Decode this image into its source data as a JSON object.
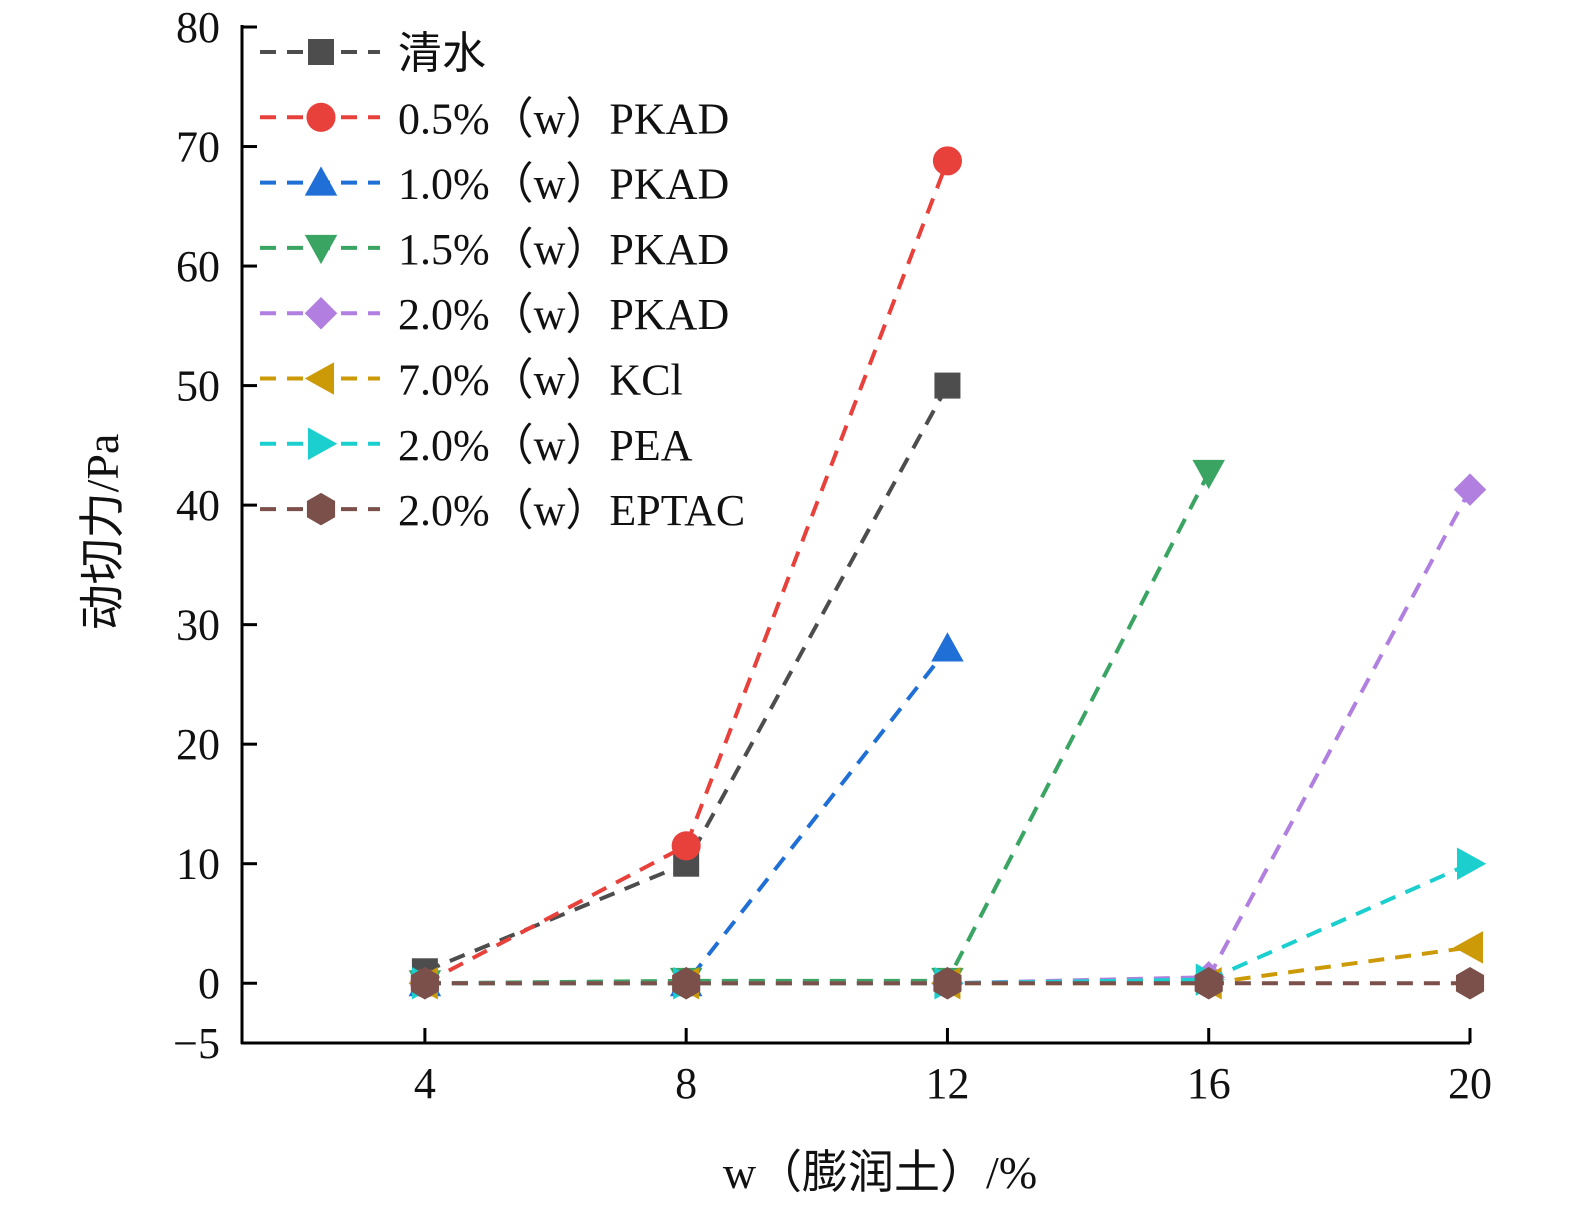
{
  "chart_data": {
    "type": "line",
    "title": "",
    "xlabel": "w（膨润土）/%",
    "ylabel": "动切力/Pa",
    "x": [
      4,
      8,
      12,
      16,
      20
    ],
    "x_ticks": [
      "4",
      "8",
      "12",
      "16",
      "20"
    ],
    "xlim": [
      1.2,
      20
    ],
    "y_ticks": [
      "−5",
      "0",
      "10",
      "20",
      "30",
      "40",
      "50",
      "60",
      "70",
      "80"
    ],
    "ylim": [
      -5,
      80
    ],
    "grid": false,
    "legend_position": "top-left",
    "line_style": "dashed",
    "series": [
      {
        "name": "清水",
        "color": "#4d4d4d",
        "marker": "square",
        "x": [
          4,
          8,
          12
        ],
        "values": [
          1,
          10,
          50
        ]
      },
      {
        "name": "0.5%（w）PKAD",
        "color": "#e8413c",
        "marker": "circle",
        "x": [
          4,
          8,
          12
        ],
        "values": [
          0,
          11.5,
          68.8
        ]
      },
      {
        "name": "1.0%（w）PKAD",
        "color": "#1f6fd6",
        "marker": "triangle-up",
        "x": [
          4,
          8,
          12
        ],
        "values": [
          0,
          0,
          28
        ]
      },
      {
        "name": "1.5%（w）PKAD",
        "color": "#3aa462",
        "marker": "triangle-down",
        "x": [
          4,
          8,
          12,
          16
        ],
        "values": [
          0,
          0.2,
          0.2,
          42.7
        ]
      },
      {
        "name": "2.0%（w）PKAD",
        "color": "#b07fe0",
        "marker": "diamond",
        "x": [
          4,
          8,
          12,
          16,
          20
        ],
        "values": [
          0,
          0,
          0,
          0.5,
          41.3
        ]
      },
      {
        "name": "7.0%（w）KCl",
        "color": "#cc9a06",
        "marker": "triangle-left",
        "x": [
          4,
          8,
          12,
          16,
          20
        ],
        "values": [
          0,
          0,
          0,
          0,
          3
        ]
      },
      {
        "name": "2.0%（w）PEA",
        "color": "#1ccfcf",
        "marker": "triangle-right",
        "x": [
          4,
          8,
          12,
          16,
          20
        ],
        "values": [
          0,
          0,
          0,
          0.3,
          10
        ]
      },
      {
        "name": "2.0%（w）EPTAC",
        "color": "#7b4f4a",
        "marker": "hexagon",
        "x": [
          4,
          8,
          12,
          16,
          20
        ],
        "values": [
          0,
          0,
          0,
          0,
          0
        ]
      }
    ]
  }
}
